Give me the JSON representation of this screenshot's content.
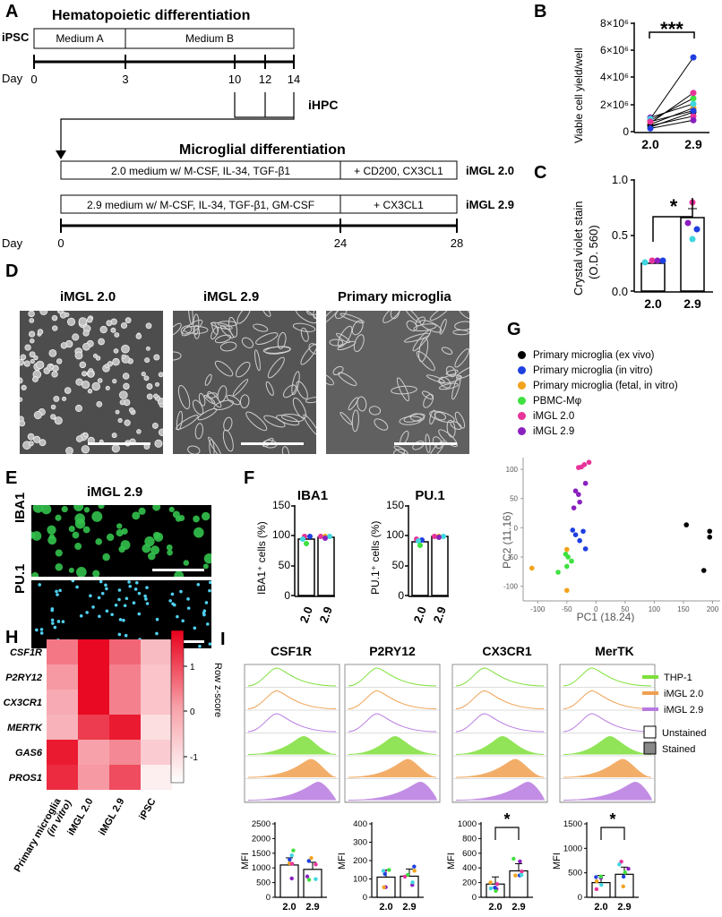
{
  "panels": {
    "A": "A",
    "B": "B",
    "C": "C",
    "D": "D",
    "E": "E",
    "F": "F",
    "G": "G",
    "H": "H",
    "I": "I"
  },
  "panelA": {
    "title1": "Hematopoietic differentiation",
    "ipsc": "iPSC",
    "mediumA": "Medium A",
    "mediumB": "Medium B",
    "day": "Day",
    "days1": [
      "0",
      "3",
      "10",
      "12",
      "14"
    ],
    "ihpc": "iHPC",
    "title2": "Microglial differentiation",
    "box20": "2.0 medium w/ M-CSF, IL-34, TGF-β1",
    "box20b": "+ CD200, CX3CL1",
    "imgl20": "iMGL 2.0",
    "box29": "2.9 medium w/ M-CSF, IL-34, TGF-β1, GM-CSF",
    "box29b": "+ CX3CL1",
    "imgl29": "iMGL 2.9",
    "days2": [
      "0",
      "24",
      "28"
    ]
  },
  "panelB": {
    "ylabel": "Viable cell yield/well",
    "yticks": [
      "0",
      "2×10⁶",
      "4×10⁶",
      "6×10⁶",
      "8×10⁶"
    ],
    "xticks": [
      "2.0",
      "2.9"
    ],
    "sig": "***"
  },
  "panelC": {
    "ylabel1": "Crystal violet stain",
    "ylabel2": "(O.D. 560)",
    "yticks": [
      "0.0",
      "0.5",
      "1.0"
    ],
    "xticks": [
      "2.0",
      "2.9"
    ],
    "sig": "*"
  },
  "panelD": {
    "labels": [
      "iMGL 2.0",
      "iMGL 2.9",
      "Primary microglia"
    ]
  },
  "panelE": {
    "title": "iMGL 2.9",
    "row1": "IBA1",
    "row2": "PU.1"
  },
  "panelF": {
    "title1": "IBA1",
    "title2": "PU.1",
    "ylabel1": "IBA1⁺ cells (%)",
    "ylabel2": "PU.1⁺ cells (%)",
    "yticks": [
      "0",
      "50",
      "100",
      "150"
    ],
    "xticks": [
      "2.0",
      "2.9"
    ]
  },
  "panelG": {
    "legend": [
      {
        "text": "Primary microglia (ex vivo)",
        "color": "#000000"
      },
      {
        "text": "Primary microglia (in vitro)",
        "color": "#1f3fe0"
      },
      {
        "text": "Primary microglia (fetal, in vitro)",
        "color": "#f2a31b"
      },
      {
        "text": "PBMC-Mφ",
        "color": "#3fe03f"
      },
      {
        "text": "iMGL 2.0",
        "color": "#e8339a"
      },
      {
        "text": "iMGL 2.9",
        "color": "#8a1fbf"
      }
    ],
    "xlabel": "PC1 (18.24)",
    "ylabel": "PC2 (11.16)",
    "xticks": [
      "-100",
      "-50",
      "0",
      "50",
      "100",
      "150",
      "200"
    ],
    "yticks": [
      "100",
      "50",
      "0",
      "-50",
      "-100"
    ]
  },
  "panelH": {
    "genes": [
      "CSF1R",
      "P2RY12",
      "CX3CR1",
      "MERTK",
      "GAS6",
      "PROS1"
    ],
    "samples": [
      "Primary microglia (in vitro)",
      "iMGL 2.0",
      "iMGL 2.9",
      "iPSC"
    ],
    "sample1a": "Primary microglia",
    "sample1b": "(in vitro)",
    "cbar_title": "Row z-score",
    "cbar_ticks": [
      "1",
      "0",
      "-1"
    ]
  },
  "panelI": {
    "markers": [
      "CSF1R",
      "P2RY12",
      "CX3CR1",
      "MerTK"
    ],
    "legend": [
      {
        "text": "THP-1",
        "color": "#7ee03a"
      },
      {
        "text": "iMGL 2.0",
        "color": "#f0a050"
      },
      {
        "text": "iMGL 2.9",
        "color": "#b87ae0"
      }
    ],
    "unstained": "Unstained",
    "stained": "Stained",
    "mfi": "MFI",
    "xticks": [
      "2.0",
      "2.9"
    ],
    "yticks": [
      [
        "0",
        "500",
        "1000",
        "1500",
        "2000",
        "2500"
      ],
      [
        "0",
        "100",
        "200",
        "300",
        "400"
      ],
      [
        "0",
        "200",
        "400",
        "600",
        "800",
        "1000"
      ],
      [
        "0",
        "500",
        "1000",
        "1500"
      ]
    ],
    "sig": "*"
  },
  "chart_data": [
    {
      "type": "scatter",
      "panel": "B",
      "ylabel": "Viable cell yield/well",
      "categories": [
        "2.0",
        "2.9"
      ],
      "series": [
        {
          "values": [
            [
              900000,
              2500000
            ],
            [
              600000,
              1800000
            ],
            [
              1100000,
              2100000
            ],
            [
              400000,
              1500000
            ],
            [
              700000,
              2900000
            ],
            [
              1000000,
              5500000
            ],
            [
              500000,
              1200000
            ],
            [
              800000,
              1600000
            ],
            [
              300000,
              900000
            ]
          ]
        }
      ],
      "ylim": [
        0,
        8000000
      ]
    },
    {
      "type": "bar",
      "panel": "C",
      "ylabel": "Crystal violet stain (O.D. 560)",
      "categories": [
        "2.0",
        "2.9"
      ],
      "values": [
        0.25,
        0.66
      ],
      "ylim": [
        0,
        1.0
      ]
    },
    {
      "type": "bar",
      "panel": "F-IBA1",
      "ylabel": "IBA1+ cells (%)",
      "categories": [
        "2.0",
        "2.9"
      ],
      "values": [
        95,
        98
      ],
      "ylim": [
        0,
        150
      ]
    },
    {
      "type": "bar",
      "panel": "F-PU.1",
      "ylabel": "PU.1+ cells (%)",
      "categories": [
        "2.0",
        "2.9"
      ],
      "values": [
        90,
        99
      ],
      "ylim": [
        0,
        150
      ]
    },
    {
      "type": "scatter",
      "panel": "G",
      "xlabel": "PC1 (18.24)",
      "ylabel": "PC2 (11.16)",
      "series": [
        {
          "name": "Primary microglia (ex vivo)",
          "points": [
            [
              155,
              5
            ],
            [
              195,
              -6
            ],
            [
              195,
              -16
            ],
            [
              185,
              -73
            ]
          ]
        },
        {
          "name": "Primary microglia (in vitro)",
          "points": [
            [
              -40,
              -4
            ],
            [
              -22,
              -6
            ],
            [
              -35,
              -12
            ],
            [
              -28,
              -22
            ],
            [
              -18,
              -36
            ]
          ]
        },
        {
          "name": "Primary microglia (fetal, in vitro)",
          "points": [
            [
              -110,
              -69
            ],
            [
              -50,
              -37
            ],
            [
              -50,
              -107
            ]
          ]
        },
        {
          "name": "PBMC-Mφ",
          "points": [
            [
              -52,
              -45
            ],
            [
              -48,
              -50
            ],
            [
              -42,
              -57
            ],
            [
              -50,
              -66
            ],
            [
              -65,
              -76
            ]
          ]
        },
        {
          "name": "iMGL 2.0",
          "points": [
            [
              -30,
              103
            ],
            [
              -25,
              104
            ],
            [
              -20,
              108
            ],
            [
              -12,
              112
            ]
          ]
        },
        {
          "name": "iMGL 2.9",
          "points": [
            [
              -35,
              63
            ],
            [
              -30,
              57
            ],
            [
              -18,
              76
            ],
            [
              -38,
              34
            ],
            [
              -28,
              44
            ]
          ]
        }
      ],
      "xlim": [
        -125,
        210
      ],
      "ylim": [
        -125,
        120
      ]
    },
    {
      "type": "heatmap",
      "panel": "H",
      "rows": [
        "CSF1R",
        "P2RY12",
        "CX3CR1",
        "MERTK",
        "GAS6",
        "PROS1"
      ],
      "columns": [
        "Primary microglia (in vitro)",
        "iMGL 2.0",
        "iMGL 2.9",
        "iPSC"
      ],
      "values": [
        [
          0.1,
          1.4,
          0.3,
          -0.7
        ],
        [
          -0.3,
          1.4,
          0.0,
          -0.8
        ],
        [
          -0.5,
          1.4,
          0.0,
          -0.8
        ],
        [
          -0.6,
          0.8,
          1.2,
          -1.1
        ],
        [
          1.2,
          -0.4,
          -0.1,
          -0.9
        ],
        [
          1.0,
          -0.3,
          0.6,
          -1.3
        ]
      ]
    },
    {
      "type": "bar",
      "panel": "I-CSF1R",
      "ylabel": "MFI",
      "categories": [
        "2.0",
        "2.9"
      ],
      "values": [
        1100,
        950
      ],
      "ylim": [
        0,
        2500
      ]
    },
    {
      "type": "bar",
      "panel": "I-P2RY12",
      "ylabel": "MFI",
      "categories": [
        "2.0",
        "2.9"
      ],
      "values": [
        110,
        115
      ],
      "ylim": [
        0,
        400
      ]
    },
    {
      "type": "bar",
      "panel": "I-CX3CR1",
      "ylabel": "MFI",
      "categories": [
        "2.0",
        "2.9"
      ],
      "values": [
        180,
        360
      ],
      "ylim": [
        0,
        1000
      ]
    },
    {
      "type": "bar",
      "panel": "I-MerTK",
      "ylabel": "MFI",
      "categories": [
        "2.0",
        "2.9"
      ],
      "values": [
        300,
        470
      ],
      "ylim": [
        0,
        1500
      ]
    }
  ]
}
